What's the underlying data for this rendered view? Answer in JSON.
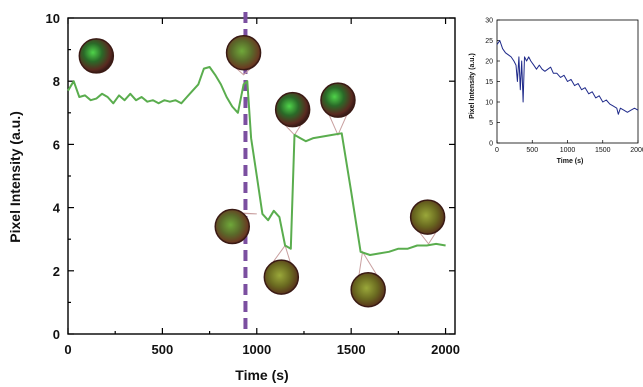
{
  "chart_data": [
    {
      "type": "line",
      "xlabel": "Time (s)",
      "ylabel": "Pixel Intensity (a.u.)",
      "xlim": [
        0,
        2050
      ],
      "ylim": [
        0,
        10
      ],
      "xticks": [
        0,
        500,
        1000,
        1500,
        2000
      ],
      "yticks": [
        0,
        2,
        4,
        6,
        8,
        10
      ],
      "colors": {
        "line": "#5aad4e",
        "marker": "#7b4fa0",
        "callout": "#c9a0a0"
      },
      "marker_line": {
        "x": 940,
        "style": "dashed"
      },
      "series": [
        {
          "x": [
            0,
            30,
            60,
            90,
            120,
            150,
            180,
            210,
            240,
            270,
            300,
            330,
            360,
            390,
            420,
            450,
            480,
            510,
            540,
            570,
            600,
            630,
            660,
            690,
            720,
            750,
            780,
            810,
            840,
            870,
            900,
            930,
            950,
            970,
            1000,
            1030,
            1060,
            1090,
            1120,
            1150,
            1180,
            1200,
            1230,
            1260,
            1300,
            1350,
            1400,
            1450,
            1500,
            1550,
            1600,
            1650,
            1700,
            1750,
            1800,
            1850,
            1900,
            1950,
            2000
          ],
          "y": [
            7.7,
            8.0,
            7.5,
            7.55,
            7.4,
            7.45,
            7.6,
            7.5,
            7.3,
            7.55,
            7.4,
            7.6,
            7.4,
            7.5,
            7.35,
            7.4,
            7.3,
            7.4,
            7.35,
            7.4,
            7.3,
            7.5,
            7.7,
            7.9,
            8.4,
            8.45,
            8.2,
            7.9,
            7.5,
            7.2,
            7.0,
            7.9,
            8.0,
            6.2,
            5.0,
            3.8,
            3.6,
            3.9,
            3.7,
            2.8,
            2.7,
            6.3,
            6.2,
            6.1,
            6.2,
            6.25,
            6.3,
            6.35,
            4.5,
            2.6,
            2.5,
            2.55,
            2.6,
            2.7,
            2.7,
            2.8,
            2.8,
            2.85,
            2.8
          ]
        }
      ],
      "thumbnails": [
        {
          "x": 150,
          "y": 8.8,
          "kind": "bright",
          "anchor_x": 150,
          "anchor_y": 8.8
        },
        {
          "x": 930,
          "y": 8.9,
          "kind": "mid",
          "anchor_x": 930,
          "anchor_y": 8.2
        },
        {
          "x": 870,
          "y": 3.4,
          "kind": "mid",
          "anchor_x": 1000,
          "anchor_y": 3.8
        },
        {
          "x": 1130,
          "y": 1.8,
          "kind": "dim",
          "anchor_x": 1150,
          "anchor_y": 2.8
        },
        {
          "x": 1190,
          "y": 7.1,
          "kind": "bright",
          "anchor_x": 1200,
          "anchor_y": 6.3
        },
        {
          "x": 1430,
          "y": 7.4,
          "kind": "bright",
          "anchor_x": 1430,
          "anchor_y": 6.3
        },
        {
          "x": 1590,
          "y": 1.4,
          "kind": "dim",
          "anchor_x": 1560,
          "anchor_y": 2.6
        },
        {
          "x": 1905,
          "y": 3.7,
          "kind": "dim",
          "anchor_x": 1910,
          "anchor_y": 2.85
        }
      ]
    },
    {
      "type": "line",
      "xlabel": "Time (s)",
      "ylabel": "Pixel Intensity (a.u.)",
      "xlim": [
        0,
        2000
      ],
      "ylim": [
        0,
        30
      ],
      "xticks": [
        0,
        500,
        1000,
        1500,
        2000
      ],
      "yticks": [
        0,
        5,
        10,
        15,
        20,
        25,
        30
      ],
      "colors": {
        "line": "#1f2a8a"
      },
      "series": [
        {
          "x": [
            0,
            40,
            80,
            120,
            160,
            200,
            240,
            270,
            290,
            310,
            330,
            350,
            370,
            390,
            420,
            450,
            480,
            520,
            560,
            600,
            640,
            680,
            720,
            760,
            800,
            850,
            900,
            950,
            1000,
            1050,
            1100,
            1150,
            1200,
            1250,
            1300,
            1350,
            1400,
            1450,
            1500,
            1550,
            1600,
            1650,
            1700,
            1720,
            1750,
            1800,
            1850,
            1900,
            1950,
            2000
          ],
          "y": [
            24,
            25,
            23,
            22,
            21.5,
            21,
            20,
            19,
            15,
            21,
            13,
            20,
            10,
            21,
            20,
            21,
            20,
            19,
            18,
            19,
            18,
            17.5,
            18,
            18.5,
            17,
            17,
            16,
            16.5,
            15,
            15.5,
            14,
            14.5,
            13,
            13.5,
            12,
            12.5,
            11,
            11.5,
            10,
            10.5,
            9.5,
            9,
            8.5,
            7,
            8.5,
            8,
            7.5,
            8,
            8.5,
            8
          ]
        }
      ]
    }
  ]
}
